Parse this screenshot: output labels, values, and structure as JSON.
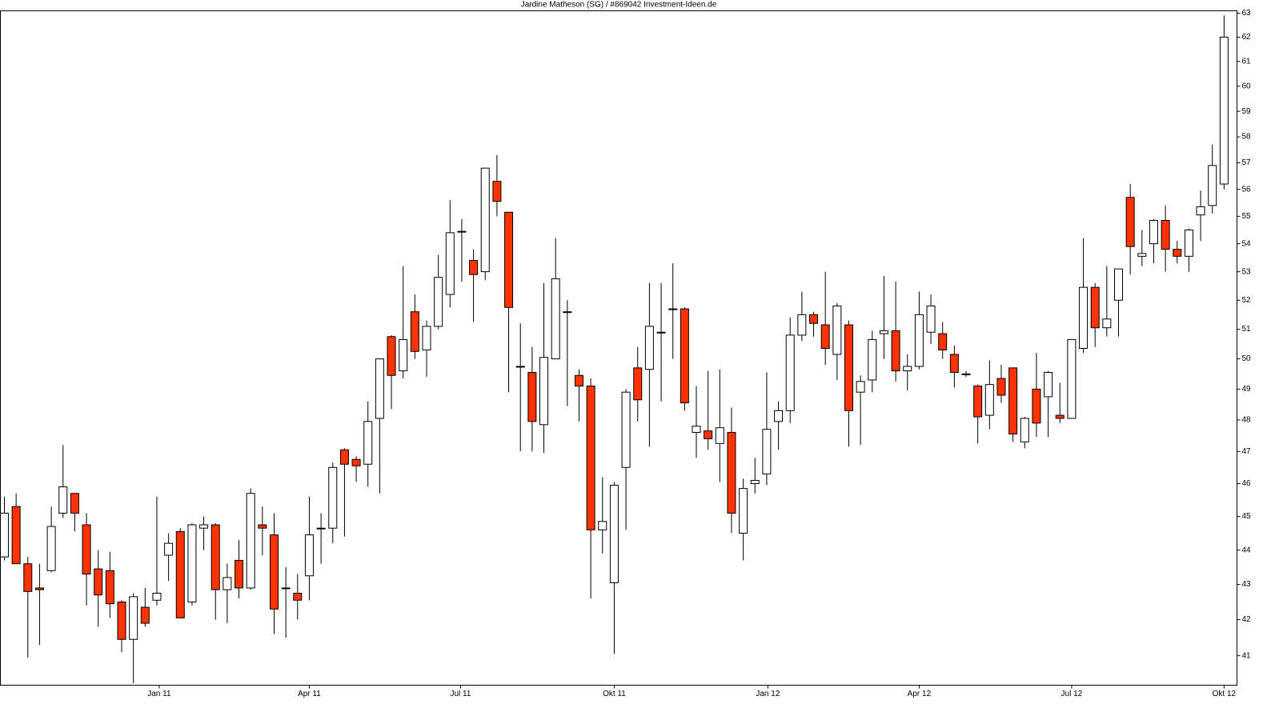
{
  "chart_data": {
    "type": "candlestick",
    "title": "Jardine Matheson (SG) / #869042 Investment-Ideen.de",
    "log_scale": true,
    "up_color": "#ffffff",
    "down_color": "#ff3300",
    "x": [
      0,
      1,
      2,
      3,
      4,
      5,
      6,
      7,
      8,
      9,
      10,
      11,
      12,
      13,
      14,
      15,
      16,
      17,
      18,
      19,
      20,
      21,
      22,
      23,
      24,
      25,
      26,
      27,
      28,
      29,
      30,
      31,
      32,
      33,
      34,
      35,
      36,
      37,
      38,
      39,
      40,
      41,
      42,
      43,
      44,
      45,
      46,
      47,
      48,
      49,
      50,
      51,
      52,
      53,
      54,
      55,
      56,
      57,
      58,
      59,
      60,
      61,
      62,
      63,
      64,
      65,
      66,
      67,
      68,
      69,
      70,
      71,
      72,
      73,
      74,
      75,
      76,
      77,
      78,
      79,
      80,
      81,
      82,
      83,
      84,
      85,
      86,
      87,
      88,
      89,
      90,
      91,
      92,
      93,
      94,
      95,
      96,
      97,
      98,
      99,
      100,
      101,
      102,
      103,
      104
    ],
    "open": [
      43.8,
      45.3,
      43.6,
      42.9,
      43.4,
      45.1,
      45.7,
      44.75,
      43.45,
      43.4,
      42.5,
      41.45,
      42.35,
      42.55,
      43.85,
      44.55,
      42.5,
      44.65,
      44.75,
      42.85,
      43.7,
      42.9,
      44.75,
      44.45,
      42.9,
      42.75,
      43.25,
      44.65,
      44.65,
      47.05,
      46.75,
      46.6,
      48.05,
      50.75,
      49.6,
      51.6,
      50.3,
      51.1,
      52.2,
      54.45,
      53.4,
      53.0,
      56.3,
      55.15,
      49.75,
      49.55,
      47.85,
      50.0,
      51.6,
      49.45,
      49.1,
      44.6,
      43.05,
      46.5,
      49.7,
      49.65,
      50.9,
      51.7,
      51.7,
      47.6,
      47.65,
      47.25,
      47.6,
      44.5,
      46.0,
      46.3,
      47.95,
      48.3,
      50.8,
      51.5,
      51.15,
      50.15,
      51.15,
      48.9,
      49.3,
      50.85,
      50.95,
      49.6,
      49.75,
      50.9,
      50.85,
      50.15,
      49.5,
      49.1,
      48.15,
      49.35,
      49.7,
      47.3,
      49.0,
      48.75,
      48.15,
      48.05,
      50.35,
      52.45,
      51.05,
      52.0,
      55.7,
      53.55,
      54.0,
      54.85,
      53.8,
      53.55,
      55.05,
      55.4,
      56.2
    ],
    "high": [
      45.6,
      45.7,
      43.8,
      43.6,
      45.3,
      47.2,
      45.7,
      45.1,
      44.0,
      43.95,
      42.55,
      42.75,
      42.9,
      45.6,
      44.5,
      44.65,
      44.8,
      45.0,
      44.8,
      43.6,
      44.3,
      45.85,
      45.3,
      45.1,
      43.5,
      43.3,
      45.6,
      45.1,
      46.65,
      47.1,
      46.85,
      48.6,
      50.0,
      50.8,
      53.2,
      52.2,
      51.3,
      53.6,
      55.6,
      54.9,
      53.8,
      56.8,
      57.3,
      55.15,
      51.2,
      50.4,
      52.6,
      54.2,
      52.0,
      49.65,
      49.35,
      46.2,
      46.05,
      49.0,
      50.4,
      52.6,
      52.6,
      53.3,
      51.75,
      49.1,
      49.6,
      49.65,
      48.4,
      46.15,
      46.8,
      49.55,
      48.6,
      51.4,
      52.3,
      51.6,
      53.0,
      51.9,
      51.3,
      49.45,
      50.95,
      52.85,
      52.65,
      50.15,
      52.3,
      52.2,
      51.25,
      50.45,
      49.6,
      49.15,
      49.95,
      49.8,
      49.7,
      48.1,
      50.2,
      49.6,
      49.2,
      50.65,
      54.2,
      52.6,
      53.2,
      53.1,
      56.2,
      54.5,
      54.9,
      55.4,
      54.1,
      54.55,
      55.95,
      57.7,
      62.9
    ],
    "low": [
      43.7,
      43.6,
      40.95,
      41.3,
      43.35,
      44.95,
      44.55,
      42.4,
      41.8,
      42.05,
      41.1,
      40.25,
      41.8,
      42.4,
      43.1,
      42.05,
      42.4,
      44.0,
      42.0,
      41.9,
      42.6,
      42.85,
      43.85,
      41.6,
      41.5,
      42.0,
      42.55,
      43.6,
      44.2,
      44.4,
      46.05,
      45.9,
      45.7,
      48.35,
      49.35,
      50.0,
      49.4,
      51.0,
      51.75,
      52.65,
      51.25,
      52.7,
      55.0,
      48.9,
      47.0,
      47.0,
      46.95,
      50.0,
      48.45,
      47.95,
      42.6,
      43.9,
      41.05,
      44.6,
      47.95,
      47.15,
      48.6,
      50.0,
      48.3,
      46.8,
      47.05,
      46.05,
      44.5,
      43.7,
      45.7,
      45.95,
      47.05,
      47.9,
      50.6,
      50.75,
      49.8,
      49.3,
      47.15,
      47.2,
      48.9,
      50.0,
      49.25,
      48.95,
      49.65,
      50.5,
      50.0,
      49.05,
      49.4,
      47.25,
      47.7,
      48.55,
      47.3,
      47.1,
      47.45,
      47.45,
      47.9,
      48.05,
      50.2,
      50.4,
      50.75,
      50.75,
      52.9,
      53.2,
      53.3,
      53.0,
      53.3,
      53.0,
      54.1,
      55.1,
      56.0
    ],
    "close": [
      45.1,
      43.6,
      42.8,
      42.85,
      44.7,
      45.9,
      45.1,
      43.3,
      42.7,
      42.45,
      41.45,
      42.65,
      41.9,
      42.75,
      44.2,
      42.05,
      44.75,
      44.75,
      42.85,
      43.2,
      42.9,
      45.7,
      44.65,
      42.3,
      42.9,
      42.55,
      44.45,
      44.65,
      46.5,
      46.6,
      46.55,
      47.95,
      50.0,
      49.45,
      50.65,
      50.25,
      51.1,
      52.8,
      54.4,
      54.45,
      52.9,
      56.8,
      55.55,
      51.75,
      49.75,
      47.95,
      50.05,
      52.75,
      51.6,
      49.1,
      44.6,
      44.85,
      45.95,
      48.9,
      48.65,
      51.1,
      50.9,
      51.7,
      48.55,
      47.8,
      47.4,
      47.75,
      45.1,
      45.85,
      46.1,
      47.7,
      48.3,
      50.8,
      51.5,
      51.2,
      50.35,
      51.8,
      48.3,
      49.25,
      50.65,
      50.95,
      49.6,
      49.75,
      51.5,
      51.8,
      50.3,
      49.55,
      49.5,
      48.1,
      49.15,
      48.8,
      47.55,
      48.05,
      47.9,
      49.55,
      48.05,
      50.65,
      52.45,
      51.05,
      51.35,
      53.1,
      53.9,
      53.65,
      54.85,
      53.8,
      53.55,
      54.5,
      55.35,
      56.9,
      62.0
    ],
    "xlim": [
      -0.34,
      105.1
    ],
    "xticks": [
      {
        "value": 13.2,
        "label": "Jan 11"
      },
      {
        "value": 26.0,
        "label": "Apr 11"
      },
      {
        "value": 38.9,
        "label": "Jul 11"
      },
      {
        "value": 52.0,
        "label": "Okt 11"
      },
      {
        "value": 65.1,
        "label": "Jan 12"
      },
      {
        "value": 78.0,
        "label": "Apr 12"
      },
      {
        "value": 91.0,
        "label": "Jul 12"
      },
      {
        "value": 104.0,
        "label": "Okt 12"
      }
    ],
    "ylim": [
      40.2,
      63.1
    ],
    "yticks": [
      41,
      42,
      43,
      44,
      45,
      46,
      47,
      48,
      49,
      50,
      51,
      52,
      53,
      54,
      55,
      56,
      57,
      58,
      59,
      60,
      61,
      62,
      63
    ]
  }
}
